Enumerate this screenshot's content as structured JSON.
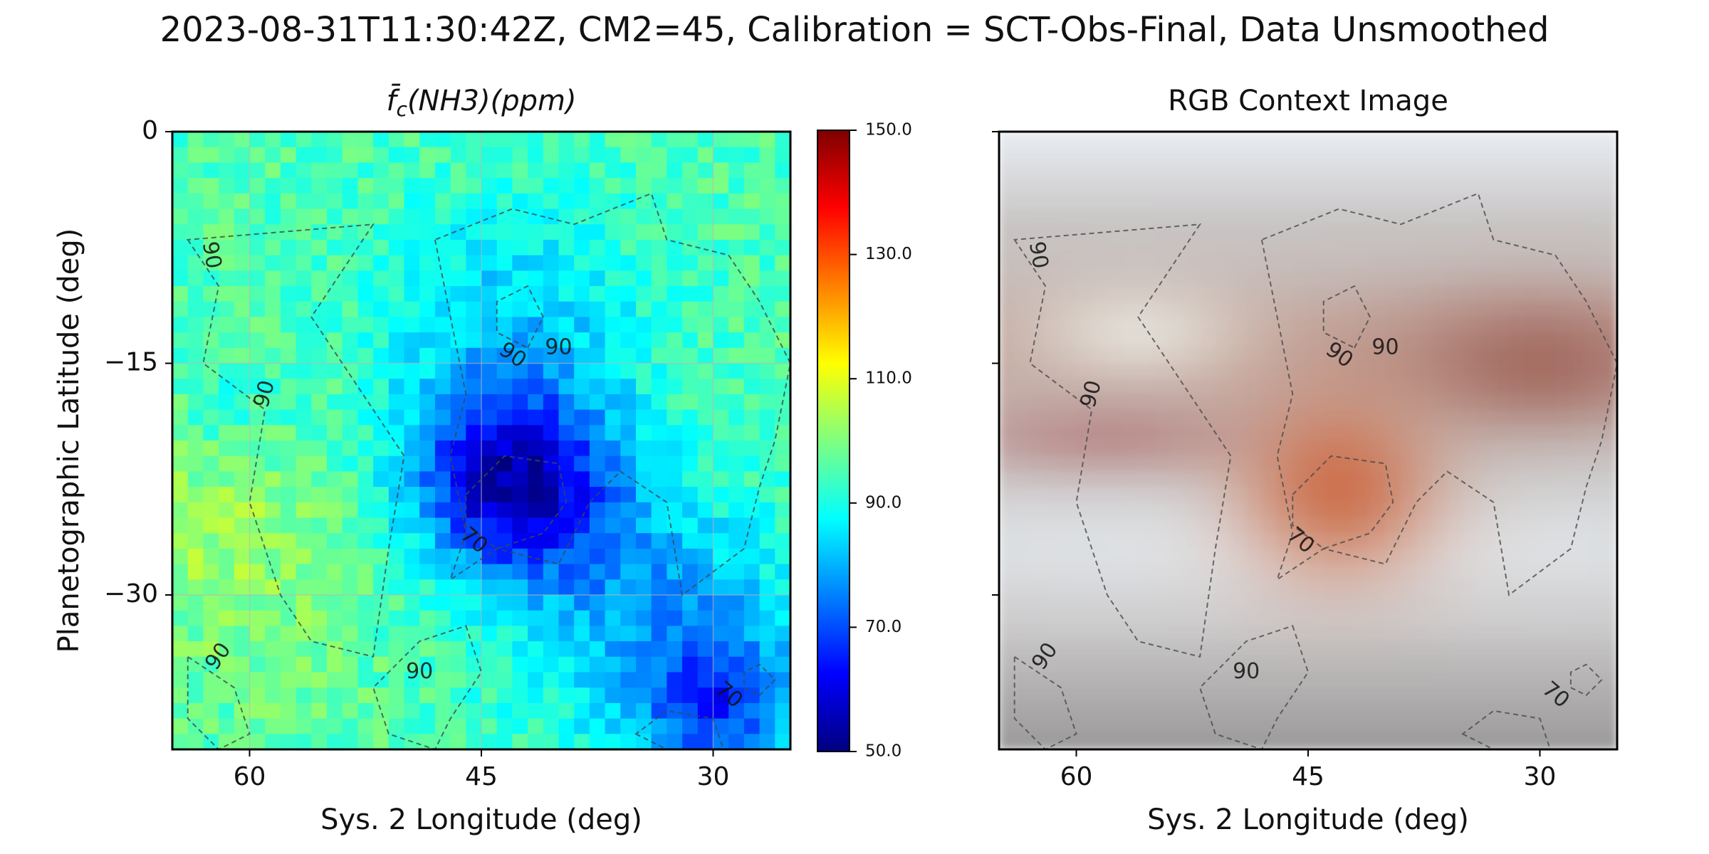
{
  "figure": {
    "suptitle": "2023-08-31T11:30:42Z, CM2=45, Calibration = SCT-Obs-Final, Data Unsmoothed"
  },
  "colorscale": {
    "stops": [
      "#00007f",
      "#0000ff",
      "#007fff",
      "#00ffff",
      "#7fff7f",
      "#ffff00",
      "#ff7f00",
      "#ff0000",
      "#7f0000"
    ]
  },
  "chart_data": [
    {
      "type": "heatmap",
      "title_main": "f̄",
      "title_sub": "c",
      "title_rest": "(NH3)(ppm)",
      "xlabel": "Sys. 2 Longitude (deg)",
      "ylabel": "Planetographic Latitude (deg)",
      "xlim": [
        65,
        25
      ],
      "ylim": [
        -40,
        0
      ],
      "xticks": [
        60,
        45,
        30
      ],
      "xtick_labels": [
        "60",
        "45",
        "30"
      ],
      "yticks": [
        0,
        -15,
        -30
      ],
      "ytick_labels": [
        "0",
        "−15",
        "−30"
      ],
      "grid": true,
      "contour_levels": [
        70,
        90
      ],
      "contour_labels": [
        "90",
        "90",
        "90",
        "90",
        "90",
        "90",
        "70",
        "70"
      ],
      "colorbar": {
        "vmin": 50,
        "vmax": 150,
        "ticks": [
          50,
          70,
          90,
          110,
          130,
          150
        ],
        "tick_labels": [
          "50.0",
          "70.0",
          "90.0",
          "110.0",
          "130.0",
          "150.0"
        ]
      },
      "features": {
        "background_ppm": 95,
        "low_region_center": {
          "lon": 43,
          "lat": -23,
          "min_ppm": 62
        },
        "southeast_low": {
          "lon": 30,
          "lat": -37,
          "min_ppm": 68
        }
      }
    },
    {
      "type": "image",
      "title": "RGB Context Image",
      "xlabel": "Sys. 2 Longitude (deg)",
      "xlim": [
        65,
        25
      ],
      "ylim": [
        -40,
        0
      ],
      "xticks": [
        60,
        45,
        30
      ],
      "xtick_labels": [
        "60",
        "45",
        "30"
      ],
      "contour_labels": [
        "90",
        "90",
        "90",
        "90",
        "90",
        "90",
        "70",
        "70"
      ],
      "features": "Great Red Spot near 43° longitude, −23° latitude; reddish band near −15° latitude"
    }
  ]
}
